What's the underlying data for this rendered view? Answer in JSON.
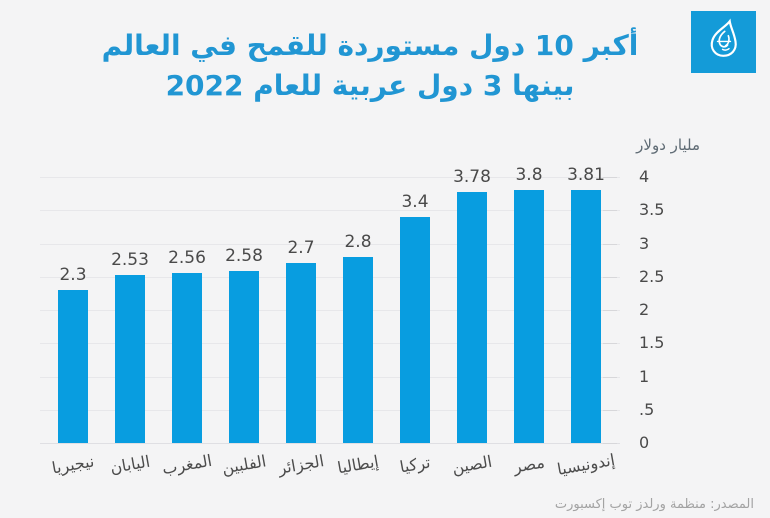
{
  "header": {
    "title_line1": "أكبر 10 دول مستوردة للقمح في العالم",
    "title_line2": "بينها 3 دول عربية للعام 2022"
  },
  "chart_data": {
    "type": "bar",
    "title": "أكبر 10 دول مستوردة للقمح في العالم بينها 3 دول عربية للعام 2022",
    "unit_label": "مليار دولار",
    "direction": "rtl",
    "axis_side": "right",
    "grid": true,
    "legend": "none",
    "categories": [
      "نيجيريا",
      "اليابان",
      "المغرب",
      "الفلبين",
      "الجزائر",
      "إيطاليا",
      "تركيا",
      "الصين",
      "مصر",
      "إندونيسيا"
    ],
    "values": [
      2.3,
      2.53,
      2.56,
      2.58,
      2.7,
      2.8,
      3.4,
      3.78,
      3.8,
      3.81
    ],
    "value_labels": [
      "2.3",
      "2.53",
      "2.56",
      "2.58",
      "2.7",
      "2.8",
      "3.4",
      "3.78",
      "3.8",
      "3.81"
    ],
    "ylim": [
      0,
      4
    ],
    "y_ticks": [
      {
        "value": 4,
        "label": "4"
      },
      {
        "value": 3.5,
        "label": "3.5"
      },
      {
        "value": 3,
        "label": "3"
      },
      {
        "value": 2.5,
        "label": "2.5"
      },
      {
        "value": 2,
        "label": "2"
      },
      {
        "value": 1.5,
        "label": "1.5"
      },
      {
        "value": 1,
        "label": "1"
      },
      {
        "value": 0.5,
        "label": ".5"
      },
      {
        "value": 0,
        "label": "0"
      }
    ],
    "bar_color": "#089de0"
  },
  "colors": {
    "background": "#f4f4f5",
    "title_blue": "#2196d3",
    "bar_blue": "#089de0",
    "logo_blue": "#149bd8",
    "text_dark": "#4a4a4a",
    "text_muted": "#a3a3a3"
  },
  "footer": {
    "source": "المصدر: منظمة ورلدز توب إكسبورت"
  }
}
